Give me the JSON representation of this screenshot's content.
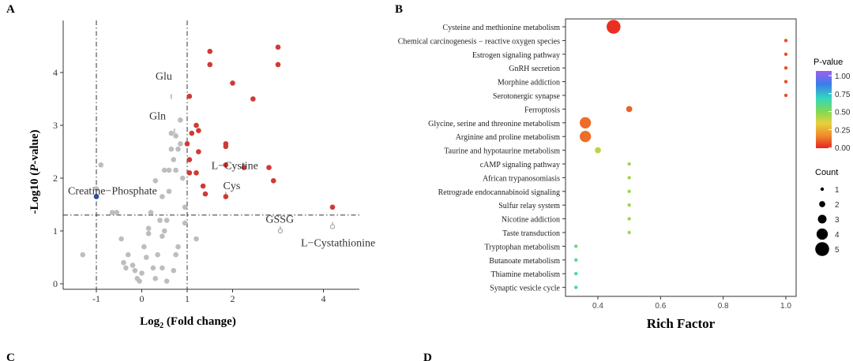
{
  "panels": {
    "a": {
      "label": "A"
    },
    "b": {
      "label": "B"
    },
    "c": {
      "label": "C"
    },
    "d": {
      "label": "D"
    }
  },
  "volcano": {
    "xlabel_base": "Log",
    "xlabel_sub": "2",
    "xlabel_rest": " (Fold change)",
    "ylabel_pre": "-Log10 (",
    "ylabel_italic": "P",
    "ylabel_post": "-value)",
    "xticks": [
      "-1",
      "0",
      "1",
      "2",
      "4"
    ],
    "yticks": [
      "0",
      "1",
      "2",
      "3",
      "4"
    ],
    "colors": {
      "up": "#d03a34",
      "down": "#2b4fa0",
      "ns": "#bdbdbd"
    }
  },
  "bubble": {
    "xlabel": "Rich Factor",
    "xticks": [
      "0.4",
      "0.6",
      "0.8",
      "1.0"
    ],
    "legend_color_title": "P-value",
    "legend_color_ticks": [
      "1.00",
      "0.75",
      "0.50",
      "0.25",
      "0.00"
    ],
    "legend_size_title": "Count",
    "legend_size_ticks": [
      "1",
      "2",
      "3",
      "4",
      "5"
    ],
    "gradient": [
      "#a35df2",
      "#3a7de8",
      "#33d6c0",
      "#7ed957",
      "#e8d13c",
      "#ef8a2e",
      "#e8241e"
    ]
  },
  "chart_data": [
    {
      "type": "scatter",
      "title": "",
      "xlabel": "Log2 (Fold change)",
      "ylabel": "-Log10 (P-value)",
      "xlim": [
        -1.5,
        4.8
      ],
      "ylim": [
        -0.1,
        4.7
      ],
      "thresholds": {
        "x": [
          -1,
          1
        ],
        "y": 1.3
      },
      "series": [
        {
          "group": "up",
          "points": [
            [
              1.5,
              4.4
            ],
            [
              3.0,
              4.48
            ],
            [
              1.5,
              4.15
            ],
            [
              3.0,
              4.15
            ],
            [
              2.0,
              3.8
            ],
            [
              1.05,
              3.55
            ],
            [
              2.45,
              3.5
            ],
            [
              1.2,
              3.0
            ],
            [
              1.25,
              2.9
            ],
            [
              1.1,
              2.85
            ],
            [
              1.0,
              2.65
            ],
            [
              1.85,
              2.65
            ],
            [
              1.85,
              2.6
            ],
            [
              1.25,
              2.5
            ],
            [
              1.05,
              2.35
            ],
            [
              1.85,
              2.25
            ],
            [
              2.25,
              2.2
            ],
            [
              2.8,
              2.2
            ],
            [
              1.05,
              2.1
            ],
            [
              1.2,
              2.1
            ],
            [
              1.35,
              1.85
            ],
            [
              1.4,
              1.7
            ],
            [
              1.85,
              1.65
            ],
            [
              2.9,
              1.95
            ],
            [
              4.2,
              1.45
            ]
          ]
        },
        {
          "group": "down",
          "points": [
            [
              -1.0,
              1.65
            ]
          ]
        },
        {
          "group": "ns",
          "points": [
            [
              -1.3,
              0.55
            ],
            [
              -1.0,
              1.8
            ],
            [
              -0.9,
              2.25
            ],
            [
              -0.65,
              1.35
            ],
            [
              -0.55,
              1.35
            ],
            [
              -0.45,
              0.85
            ],
            [
              -0.4,
              0.4
            ],
            [
              -0.35,
              0.3
            ],
            [
              -0.3,
              0.55
            ],
            [
              -0.2,
              0.35
            ],
            [
              -0.15,
              0.25
            ],
            [
              -0.1,
              0.1
            ],
            [
              -0.05,
              0.05
            ],
            [
              0.0,
              0.2
            ],
            [
              0.05,
              0.7
            ],
            [
              0.1,
              0.5
            ],
            [
              0.15,
              0.95
            ],
            [
              0.15,
              1.05
            ],
            [
              0.2,
              1.35
            ],
            [
              0.25,
              0.3
            ],
            [
              0.3,
              0.1
            ],
            [
              0.35,
              0.55
            ],
            [
              0.4,
              1.2
            ],
            [
              0.45,
              1.65
            ],
            [
              0.45,
              0.9
            ],
            [
              0.5,
              1.0
            ],
            [
              0.55,
              1.2
            ],
            [
              0.6,
              1.75
            ],
            [
              0.5,
              2.15
            ],
            [
              0.6,
              2.15
            ],
            [
              0.65,
              2.55
            ],
            [
              0.7,
              2.35
            ],
            [
              0.75,
              2.15
            ],
            [
              0.65,
              2.85
            ],
            [
              0.75,
              2.8
            ],
            [
              0.8,
              2.55
            ],
            [
              0.85,
              3.1
            ],
            [
              0.85,
              2.65
            ],
            [
              0.9,
              2.0
            ],
            [
              0.95,
              1.15
            ],
            [
              0.95,
              1.45
            ],
            [
              0.8,
              0.7
            ],
            [
              0.45,
              0.3
            ],
            [
              0.55,
              0.05
            ],
            [
              0.7,
              0.25
            ],
            [
              0.75,
              0.55
            ],
            [
              0.3,
              1.95
            ],
            [
              1.2,
              0.85
            ]
          ]
        }
      ],
      "annotations": [
        {
          "label": "Glu",
          "x": 0.65,
          "y": 3.75
        },
        {
          "label": "Gln",
          "x": 0.6,
          "y": 3.05
        },
        {
          "label": "L−Cystine",
          "x": 1.95,
          "y": 2.2
        },
        {
          "label": "Cys",
          "x": 2.0,
          "y": 1.85
        },
        {
          "label": "Creatine−Phosphate",
          "x": 0.2,
          "y": 1.78
        },
        {
          "label": "GSSG",
          "x": 3.25,
          "y": 1.25
        },
        {
          "label": "L−Cystathionine",
          "x": 4.2,
          "y": 0.8
        }
      ]
    },
    {
      "type": "scatter",
      "title": "",
      "xlabel": "Rich Factor",
      "ylabel": "",
      "xlim": [
        0.31,
        1.04
      ],
      "categories": [
        "Cysteine and methionine metabolism",
        "Chemical carcinogenesis − reactive oxygen species",
        "Estrogen signaling pathway",
        "GnRH secretion",
        "Morphine addiction",
        "Serotonergic synapse",
        "Ferroptosis",
        "Glycine, serine and threonine metabolism",
        "Arginine and proline metabolism",
        "Taurine and hypotaurine metabolism",
        "cAMP signaling pathway",
        "African trypanosomiasis",
        "Retrograde endocannabinoid signaling",
        "Sulfur relay system",
        "Nicotine addiction",
        "Taste transduction",
        "Tryptophan metabolism",
        "Butanoate metabolism",
        "Thiamine metabolism",
        "Synaptic vesicle cycle"
      ],
      "rich_factor": [
        0.45,
        1.0,
        1.0,
        1.0,
        1.0,
        1.0,
        0.5,
        0.36,
        0.36,
        0.4,
        0.5,
        0.5,
        0.5,
        0.5,
        0.5,
        0.5,
        0.33,
        0.33,
        0.33,
        0.33
      ],
      "p_value": [
        0.02,
        0.07,
        0.07,
        0.07,
        0.07,
        0.07,
        0.1,
        0.12,
        0.12,
        0.4,
        0.45,
        0.45,
        0.45,
        0.45,
        0.45,
        0.45,
        0.55,
        0.58,
        0.6,
        0.62
      ],
      "count": [
        5,
        1,
        1,
        1,
        1,
        1,
        2,
        4,
        4,
        2,
        1,
        1,
        1,
        1,
        1,
        1,
        1,
        1,
        1,
        1
      ],
      "color_range": [
        0.0,
        1.0
      ],
      "size_range": [
        1,
        5
      ]
    }
  ]
}
